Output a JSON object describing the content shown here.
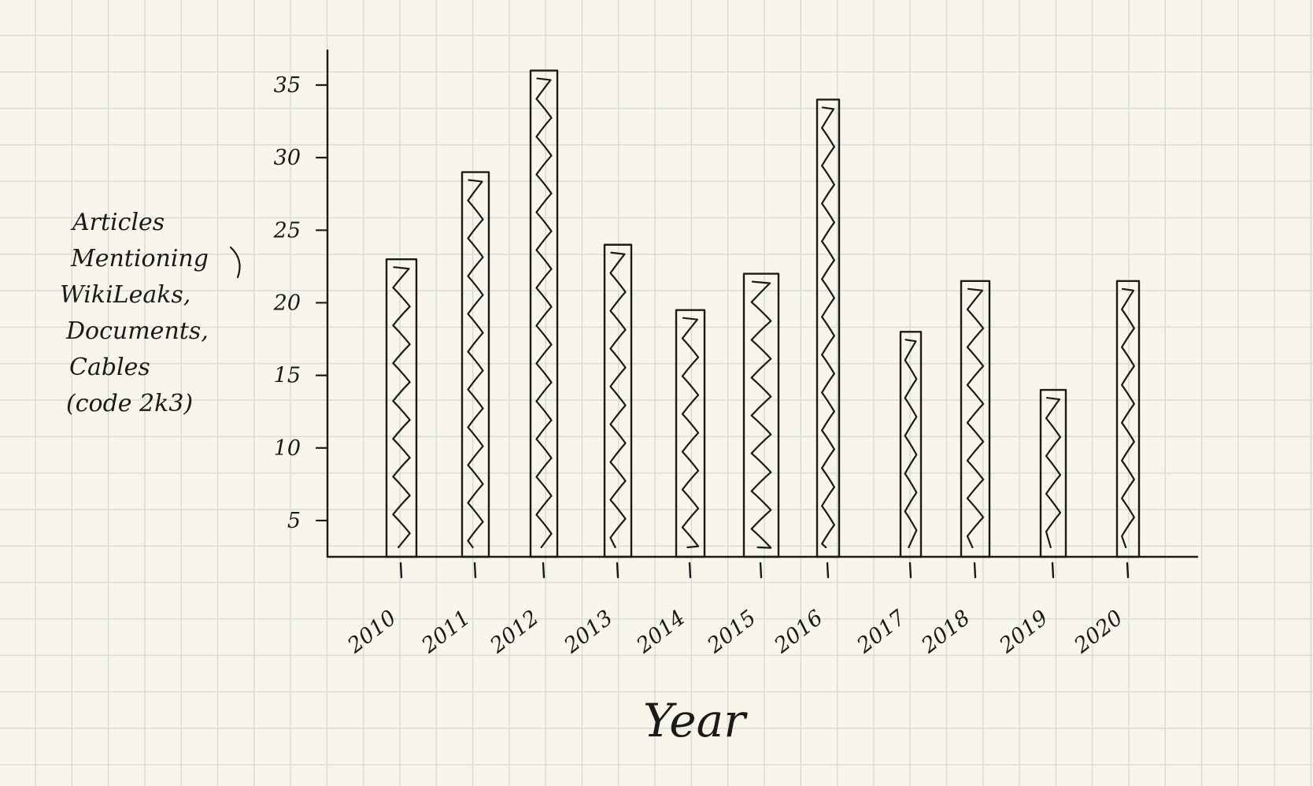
{
  "chart_data": {
    "type": "bar",
    "title": "",
    "xlabel": "Year",
    "ylabel": [
      "Articles",
      "Mentioning",
      "WikiLeaks,",
      "Documents,",
      "Cables",
      "(code 2k3)"
    ],
    "categories": [
      "2010",
      "2011",
      "2012",
      "2013",
      "2014",
      "2015",
      "2016",
      "2017",
      "2018",
      "2019",
      "2020"
    ],
    "values": [
      23,
      29,
      36,
      24,
      19.5,
      22,
      34,
      18,
      21.5,
      14,
      21.5
    ],
    "yticks": [
      "5",
      "10",
      "15",
      "20",
      "25",
      "30",
      "35"
    ],
    "ytick_values": [
      5,
      10,
      15,
      20,
      25,
      30,
      35
    ],
    "ylim": [
      2.5,
      38
    ],
    "grid": true,
    "legend": "none",
    "style": "hand-drawn bars with zigzag fill on graph paper"
  },
  "colors": {
    "ink": "#1a1a1a",
    "paper": "#f8f6ea",
    "grid": "#d9dbd9"
  }
}
